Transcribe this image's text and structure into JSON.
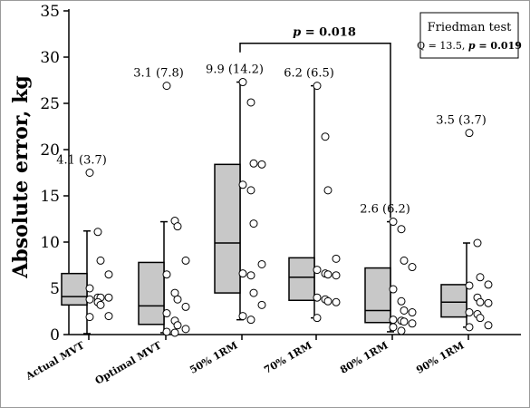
{
  "chart_data": {
    "type": "box",
    "ylabel": "Absolute error, kg",
    "ylim": [
      0,
      35
    ],
    "yticks": [
      0,
      5,
      10,
      15,
      20,
      25,
      30,
      35
    ],
    "categories": [
      "Actual MVT",
      "Optimal MVT",
      "50% 1RM",
      "70% 1RM",
      "80% 1RM",
      "90% 1RM"
    ],
    "boxes": [
      {
        "min": 0.1,
        "q1": 3.2,
        "median": 4.1,
        "q3": 6.6,
        "max": 11.2,
        "label": "4.1 (3.7)",
        "points": [
          17.5,
          11.1,
          8.0,
          6.5,
          5.0,
          4.0,
          4.0,
          4.0,
          3.8,
          3.5,
          3.2,
          2.0,
          1.9
        ]
      },
      {
        "min": 0.2,
        "q1": 1.1,
        "median": 3.1,
        "q3": 7.8,
        "max": 12.2,
        "label": "3.1 (7.8)",
        "points": [
          26.9,
          12.3,
          11.7,
          8.0,
          6.5,
          4.5,
          3.8,
          3.0,
          2.3,
          1.5,
          1.0,
          0.6,
          0.3,
          0.2
        ]
      },
      {
        "min": 1.6,
        "q1": 4.5,
        "median": 9.9,
        "q3": 18.4,
        "max": 27.3,
        "label": "9.9 (14.2)",
        "points": [
          27.3,
          25.1,
          18.5,
          18.4,
          16.2,
          15.6,
          12.0,
          7.6,
          6.6,
          6.4,
          4.5,
          3.2,
          2.0,
          1.6
        ]
      },
      {
        "min": 1.8,
        "q1": 3.7,
        "median": 6.2,
        "q3": 8.3,
        "max": 26.9,
        "label": "6.2 (6.5)",
        "points": [
          26.9,
          21.4,
          15.6,
          8.2,
          7.0,
          6.6,
          6.5,
          6.4,
          4.0,
          3.8,
          3.6,
          3.5,
          1.8
        ]
      },
      {
        "min": 0.3,
        "q1": 1.3,
        "median": 2.6,
        "q3": 7.2,
        "max": 12.2,
        "label": "2.6 (6.2)",
        "points": [
          12.2,
          11.4,
          8.0,
          7.3,
          4.9,
          3.6,
          2.6,
          2.4,
          1.6,
          1.5,
          1.4,
          1.2,
          0.8,
          0.4
        ]
      },
      {
        "min": 0.8,
        "q1": 1.9,
        "median": 3.5,
        "q3": 5.4,
        "max": 9.9,
        "label": "3.5 (3.7)",
        "points": [
          21.8,
          9.9,
          6.2,
          5.4,
          5.3,
          4.0,
          3.5,
          3.4,
          2.4,
          2.2,
          1.8,
          1.0,
          0.8
        ]
      }
    ],
    "comparison": {
      "from": "50% 1RM",
      "to": "80% 1RM",
      "label_prefix": "p",
      "label_value": " = 0.018",
      "level": 31.5
    },
    "legend": {
      "title": "Friedman test",
      "stat_text": "Q = 13.5, ",
      "p_prefix": "p",
      "p_value": " = 0.019",
      "position": "top-right"
    },
    "box_color": "#c8c8c8"
  }
}
